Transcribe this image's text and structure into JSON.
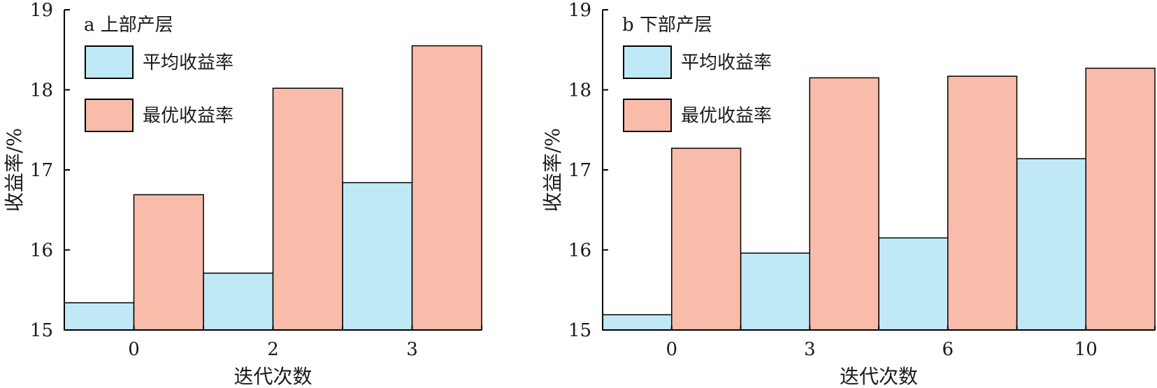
{
  "chart_data": [
    {
      "type": "bar",
      "panel_label": "a 上部产层",
      "categories": [
        "0",
        "2",
        "3"
      ],
      "series": [
        {
          "name": "平均收益率",
          "color": "#c0e9f7",
          "values": [
            15.34,
            15.71,
            16.84
          ]
        },
        {
          "name": "最优收益率",
          "color": "#f9bcab",
          "values": [
            16.69,
            18.02,
            18.55
          ]
        }
      ],
      "xlabel": "迭代次数",
      "ylabel": "收益率/%",
      "ylim": [
        15,
        19
      ],
      "yticks": [
        "15",
        "16",
        "17",
        "18",
        "19"
      ],
      "legend_position": "top-left",
      "grid": false
    },
    {
      "type": "bar",
      "panel_label": "b 下部产层",
      "categories": [
        "0",
        "3",
        "6",
        "10"
      ],
      "series": [
        {
          "name": "平均收益率",
          "color": "#c0e9f7",
          "values": [
            15.19,
            15.96,
            16.15,
            17.14
          ]
        },
        {
          "name": "最优收益率",
          "color": "#f9bcab",
          "values": [
            17.27,
            18.15,
            18.17,
            18.27
          ]
        }
      ],
      "xlabel": "迭代次数",
      "ylabel": "收益率/%",
      "ylim": [
        15,
        19
      ],
      "yticks": [
        "15",
        "16",
        "17",
        "18",
        "19"
      ],
      "legend_position": "top-left",
      "grid": false
    }
  ]
}
